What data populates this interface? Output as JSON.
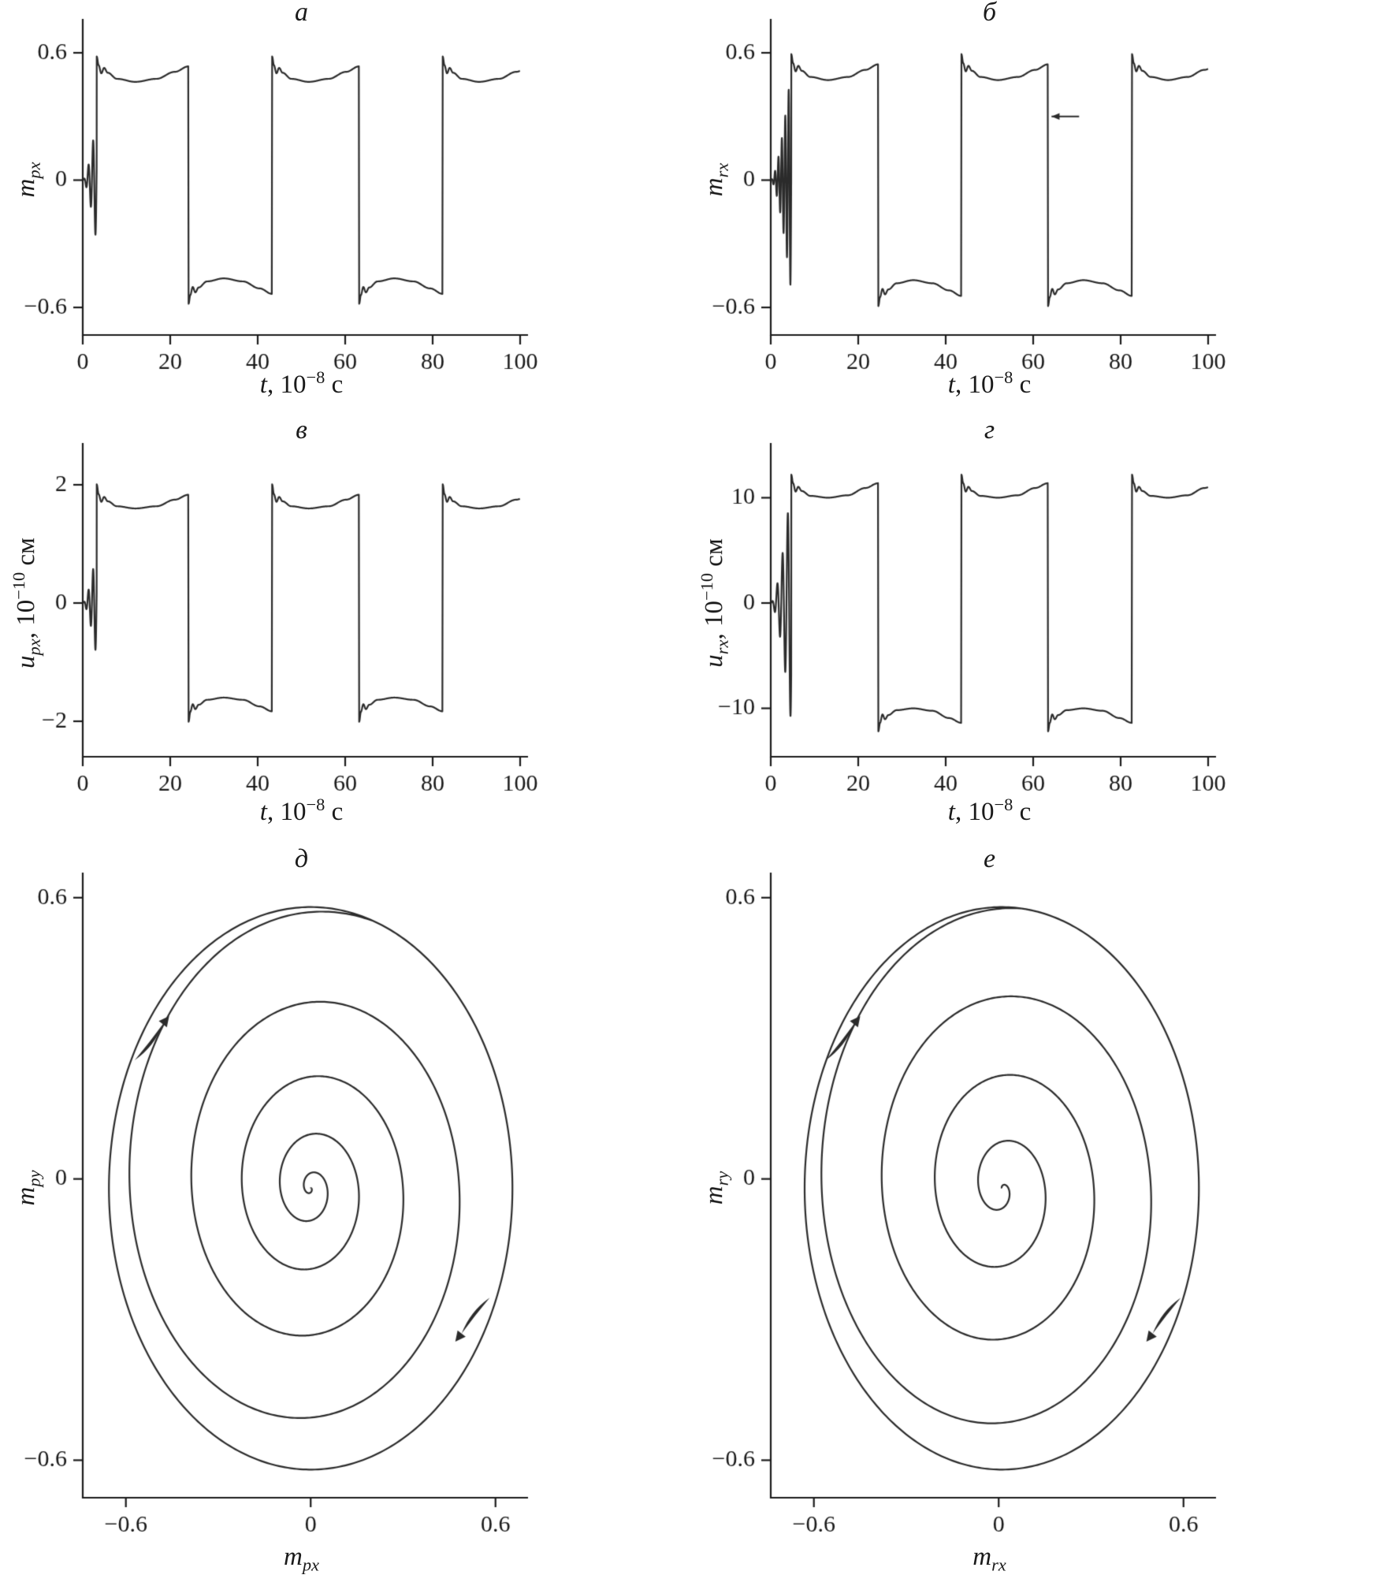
{
  "figure": {
    "background": "#ffffff",
    "line_color": "#2b2b2b",
    "axis_color": "#1a1a1a"
  },
  "chart_data": [
    {
      "id": "a",
      "type": "line",
      "title": "а",
      "xlabel": {
        "i": "t",
        "sub": "",
        "pre": ", 10",
        "sup": "−8",
        "post": " с"
      },
      "ylabel": {
        "i": "m",
        "sub": "px",
        "pre": "",
        "sup": "",
        "post": ""
      },
      "xlim": [
        0,
        100
      ],
      "ylim": [
        -0.73,
        0.73
      ],
      "xticks": [
        {
          "v": 0,
          "t": "0"
        },
        {
          "v": 20,
          "t": "20"
        },
        {
          "v": 40,
          "t": "40"
        },
        {
          "v": 60,
          "t": "60"
        },
        {
          "v": 80,
          "t": "80"
        },
        {
          "v": 100,
          "t": "100"
        }
      ],
      "yticks": [
        {
          "v": -0.6,
          "t": "−0.6"
        },
        {
          "v": 0,
          "t": "0"
        },
        {
          "v": 0.6,
          "t": "0.6"
        }
      ],
      "wave": {
        "t_start": 3.2,
        "switches": [
          24.2,
          43.3,
          63.2,
          82.3
        ],
        "t_end": 100,
        "amp": 0.55,
        "first": 1,
        "transient": {
          "frac": 0.55,
          "period": 1.05
        },
        "shape": [
          [
            0,
            1.06
          ],
          [
            0.02,
            0.985
          ],
          [
            0.05,
            0.915
          ],
          [
            0.08,
            0.962
          ],
          [
            0.12,
            0.92
          ],
          [
            0.22,
            0.868
          ],
          [
            0.42,
            0.842
          ],
          [
            0.65,
            0.868
          ],
          [
            0.85,
            0.928
          ],
          [
            1,
            0.975
          ]
        ]
      }
    },
    {
      "id": "b",
      "type": "line",
      "title": "б",
      "xlabel": {
        "i": "t",
        "sub": "",
        "pre": ", 10",
        "sup": "−8",
        "post": " с"
      },
      "ylabel": {
        "i": "m",
        "sub": "rx",
        "pre": "",
        "sup": "",
        "post": ""
      },
      "xlim": [
        0,
        100
      ],
      "ylim": [
        -0.73,
        0.73
      ],
      "xticks": [
        {
          "v": 0,
          "t": "0"
        },
        {
          "v": 20,
          "t": "20"
        },
        {
          "v": 40,
          "t": "40"
        },
        {
          "v": 60,
          "t": "60"
        },
        {
          "v": 80,
          "t": "80"
        },
        {
          "v": 100,
          "t": "100"
        }
      ],
      "yticks": [
        {
          "v": -0.6,
          "t": "−0.6"
        },
        {
          "v": 0,
          "t": "0"
        },
        {
          "v": 0.6,
          "t": "0.6"
        }
      ],
      "wave": {
        "t_start": 4.7,
        "switches": [
          24.6,
          43.6,
          63.4,
          82.6
        ],
        "t_end": 100,
        "amp": 0.56,
        "first": 1,
        "transient": {
          "frac": 0.95,
          "period": 0.78
        },
        "shape": [
          [
            0,
            1.06
          ],
          [
            0.02,
            0.985
          ],
          [
            0.05,
            0.915
          ],
          [
            0.08,
            0.962
          ],
          [
            0.12,
            0.92
          ],
          [
            0.22,
            0.868
          ],
          [
            0.42,
            0.842
          ],
          [
            0.65,
            0.868
          ],
          [
            0.85,
            0.928
          ],
          [
            1,
            0.975
          ]
        ]
      },
      "annotations": [
        {
          "type": "arrow",
          "tail": [
            70.5,
            0.3
          ],
          "tip": [
            64.2,
            0.3
          ]
        }
      ]
    },
    {
      "id": "v",
      "type": "line",
      "title": "в",
      "xlabel": {
        "i": "t",
        "sub": "",
        "pre": ", 10",
        "sup": "−8",
        "post": " с"
      },
      "ylabel": {
        "i": "u",
        "sub": "px",
        "pre": ", 10",
        "sup": "−10",
        "post": " см"
      },
      "xlim": [
        0,
        100
      ],
      "ylim": [
        -2.6,
        2.6
      ],
      "xticks": [
        {
          "v": 0,
          "t": "0"
        },
        {
          "v": 20,
          "t": "20"
        },
        {
          "v": 40,
          "t": "40"
        },
        {
          "v": 60,
          "t": "60"
        },
        {
          "v": 80,
          "t": "80"
        },
        {
          "v": 100,
          "t": "100"
        }
      ],
      "yticks": [
        {
          "v": -2,
          "t": "−2"
        },
        {
          "v": 0,
          "t": "0"
        },
        {
          "v": 2,
          "t": "2"
        }
      ],
      "wave": {
        "t_start": 3.2,
        "switches": [
          24.2,
          43.3,
          63.2,
          82.3
        ],
        "t_end": 100,
        "amp": 1.86,
        "first": 1,
        "transient": {
          "frac": 0.5,
          "period": 1.05
        },
        "shape": [
          [
            0,
            1.08
          ],
          [
            0.02,
            0.99
          ],
          [
            0.05,
            0.92
          ],
          [
            0.08,
            0.965
          ],
          [
            0.12,
            0.925
          ],
          [
            0.22,
            0.88
          ],
          [
            0.42,
            0.86
          ],
          [
            0.65,
            0.88
          ],
          [
            0.85,
            0.94
          ],
          [
            1,
            0.985
          ]
        ]
      }
    },
    {
      "id": "g",
      "type": "line",
      "title": "г",
      "xlabel": {
        "i": "t",
        "sub": "",
        "pre": ", 10",
        "sup": "−8",
        "post": " с"
      },
      "ylabel": {
        "i": "u",
        "sub": "rx",
        "pre": ", 10",
        "sup": "−10",
        "post": " см"
      },
      "xlim": [
        0,
        100
      ],
      "ylim": [
        -14.6,
        14.6
      ],
      "xticks": [
        {
          "v": 0,
          "t": "0"
        },
        {
          "v": 20,
          "t": "20"
        },
        {
          "v": 40,
          "t": "40"
        },
        {
          "v": 60,
          "t": "60"
        },
        {
          "v": 80,
          "t": "80"
        },
        {
          "v": 100,
          "t": "100"
        }
      ],
      "yticks": [
        {
          "v": -10,
          "t": "−10"
        },
        {
          "v": 0,
          "t": "0"
        },
        {
          "v": 10,
          "t": "10"
        }
      ],
      "wave": {
        "t_start": 4.7,
        "switches": [
          24.6,
          43.6,
          63.4,
          82.6
        ],
        "t_end": 100,
        "amp": 11.5,
        "first": 1,
        "transient": {
          "frac": 1.0,
          "period": 1.2
        },
        "shape": [
          [
            0,
            1.06
          ],
          [
            0.02,
            0.99
          ],
          [
            0.05,
            0.92
          ],
          [
            0.08,
            0.96
          ],
          [
            0.12,
            0.925
          ],
          [
            0.22,
            0.885
          ],
          [
            0.42,
            0.87
          ],
          [
            0.65,
            0.89
          ],
          [
            0.85,
            0.95
          ],
          [
            1,
            0.99
          ]
        ]
      }
    },
    {
      "id": "d",
      "type": "line",
      "title": "д",
      "xlabel": {
        "i": "m",
        "sub": "px",
        "pre": "",
        "sup": "",
        "post": ""
      },
      "ylabel": {
        "i": "m",
        "sub": "py",
        "pre": "",
        "sup": "",
        "post": ""
      },
      "xlim": [
        -0.74,
        0.68
      ],
      "ylim": [
        -0.68,
        0.64
      ],
      "xticks": [
        {
          "v": -0.6,
          "t": "−0.6"
        },
        {
          "v": 0,
          "t": "0"
        },
        {
          "v": 0.6,
          "t": "0.6"
        }
      ],
      "yticks": [
        {
          "v": -0.6,
          "t": "−0.6"
        },
        {
          "v": 0,
          "t": "0"
        },
        {
          "v": 0.6,
          "t": "0.6"
        }
      ],
      "spiral": {
        "cx": 0.0,
        "cy": -0.02,
        "rx": 0.655,
        "ry": 0.6,
        "turns": 5.0,
        "pow": 1.75,
        "theta0": 1.25,
        "extra": 1.25,
        "hooks": [
          {
            "x": -0.48,
            "y": 0.33,
            "dir": 52
          },
          {
            "x": 0.49,
            "y": -0.33,
            "dir": 232
          }
        ]
      }
    },
    {
      "id": "e",
      "type": "line",
      "title": "е",
      "xlabel": {
        "i": "m",
        "sub": "rx",
        "pre": "",
        "sup": "",
        "post": ""
      },
      "ylabel": {
        "i": "m",
        "sub": "ry",
        "pre": "",
        "sup": "",
        "post": ""
      },
      "xlim": [
        -0.74,
        0.68
      ],
      "ylim": [
        -0.68,
        0.64
      ],
      "xticks": [
        {
          "v": -0.6,
          "t": "−0.6"
        },
        {
          "v": 0,
          "t": "0"
        },
        {
          "v": 0.6,
          "t": "0.6"
        }
      ],
      "yticks": [
        {
          "v": -0.6,
          "t": "−0.6"
        },
        {
          "v": 0,
          "t": "0"
        },
        {
          "v": 0.6,
          "t": "0.6"
        }
      ],
      "spiral": {
        "cx": 0.01,
        "cy": -0.02,
        "rx": 0.64,
        "ry": 0.6,
        "turns": 4.1,
        "pow": 1.35,
        "theta0": 2.1,
        "extra": 1.25,
        "hooks": [
          {
            "x": -0.47,
            "y": 0.33,
            "dir": 52
          },
          {
            "x": 0.5,
            "y": -0.33,
            "dir": 232
          }
        ]
      }
    }
  ]
}
